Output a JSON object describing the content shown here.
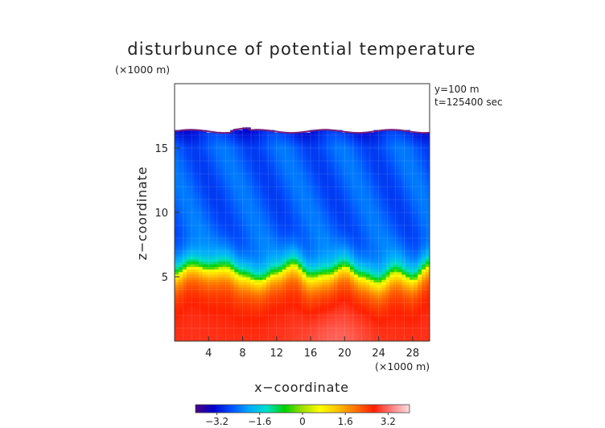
{
  "chart_data": {
    "type": "heatmap",
    "title": "disturbunce of potential temperature",
    "y_unit_label": "(×1000 m)",
    "x_unit_label": "(×1000 m)",
    "xlabel": "x−coordinate",
    "ylabel": "z−coordinate",
    "annotations": [
      "y=100 m",
      "t=125400 sec"
    ],
    "xlim": [
      0,
      30
    ],
    "ylim": [
      0,
      20
    ],
    "x_ticks": [
      4,
      8,
      12,
      16,
      20,
      24,
      28
    ],
    "y_ticks": [
      5,
      10,
      15
    ],
    "colorbar": {
      "range": [
        -4.0,
        4.0
      ],
      "ticks": [
        -3.2,
        -1.6,
        0,
        1.6,
        3.2
      ],
      "tick_labels": [
        "−3.2",
        "−1.6",
        "0",
        "1.6",
        "3.2"
      ],
      "colors": [
        "#4b0082",
        "#0000cd",
        "#0050ff",
        "#00a8ff",
        "#00e0c8",
        "#00d000",
        "#a0e000",
        "#ffff00",
        "#ffc000",
        "#ff7000",
        "#ff2000",
        "#ff8080",
        "#ffe0e0"
      ]
    },
    "field": {
      "top_of_data_z": 16.3,
      "upper_layer_value": -2.6,
      "interface_z": 5.7,
      "lower_layer_value": 2.8,
      "interface_profile": [
        [
          0,
          5.2
        ],
        [
          2,
          5.9
        ],
        [
          4,
          5.6
        ],
        [
          6,
          5.8
        ],
        [
          8,
          5.1
        ],
        [
          10,
          4.7
        ],
        [
          12,
          5.3
        ],
        [
          14,
          6.0
        ],
        [
          16,
          5.0
        ],
        [
          18,
          5.2
        ],
        [
          20,
          5.8
        ],
        [
          22,
          5.0
        ],
        [
          24,
          4.6
        ],
        [
          26,
          5.4
        ],
        [
          28,
          4.8
        ],
        [
          30,
          5.9
        ]
      ]
    }
  }
}
